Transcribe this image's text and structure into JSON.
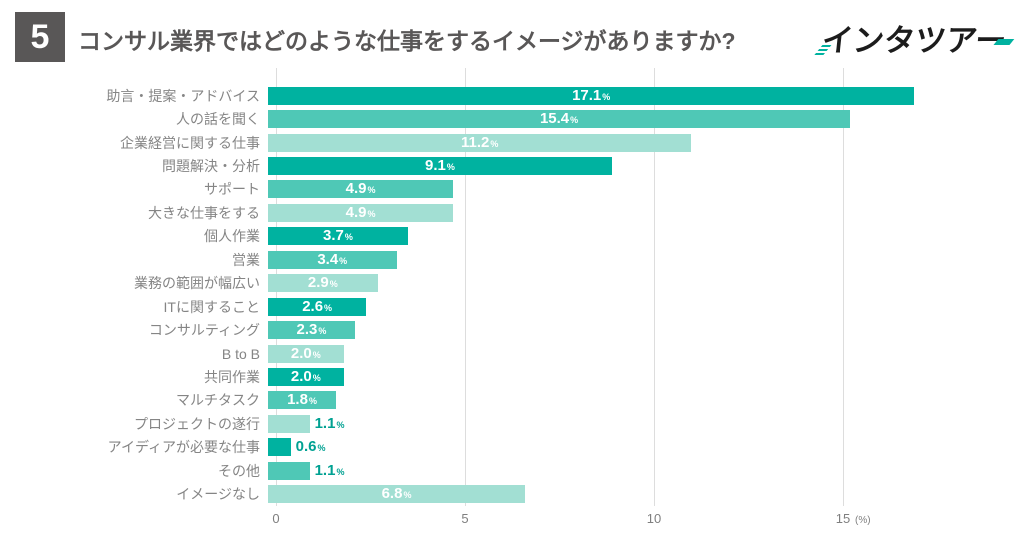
{
  "header": {
    "number": "5",
    "title": "コンサル業界ではどのような仕事をするイメージがありますか?",
    "logo_text": "インタツアー",
    "number_box_color": "#595757",
    "title_color": "#595757",
    "logo_accent_color": "#00b2a0"
  },
  "chart_data": {
    "type": "bar",
    "orientation": "horizontal",
    "title": "コンサル業界ではどのような仕事をするイメージがありますか?",
    "categories": [
      "助言・提案・アドバイス",
      "人の話を聞く",
      "企業経営に関する仕事",
      "問題解決・分析",
      "サポート",
      "大きな仕事をする",
      "個人作業",
      "営業",
      "業務の範囲が幅広い",
      "ITに関すること",
      "コンサルティング",
      "B to B",
      "共同作業",
      "マルチタスク",
      "プロジェクトの遂行",
      "アイディアが必要な仕事",
      "その他",
      "イメージなし"
    ],
    "values": [
      17.1,
      15.4,
      11.2,
      9.1,
      4.9,
      4.9,
      3.7,
      3.4,
      2.9,
      2.6,
      2.3,
      2.0,
      2.0,
      1.8,
      1.1,
      0.6,
      1.1,
      6.8
    ],
    "unit": "%",
    "xlabel": "(%)",
    "x_ticks": [
      0,
      5,
      10,
      15
    ],
    "xlim": [
      0,
      17.5
    ],
    "grid": "vertical",
    "legend": "none",
    "colors": {
      "dark": "#00b2a0",
      "medium": "#4fc8b6",
      "light": "#a2dfd3"
    },
    "color_cycle": [
      "dark",
      "medium",
      "light"
    ],
    "value_label_inside_color": "#ffffff",
    "value_label_outside_color": "#00a192",
    "gridline_color": "#dddddd",
    "category_label_color": "#858585",
    "tick_label_color": "#7f7f7f"
  }
}
